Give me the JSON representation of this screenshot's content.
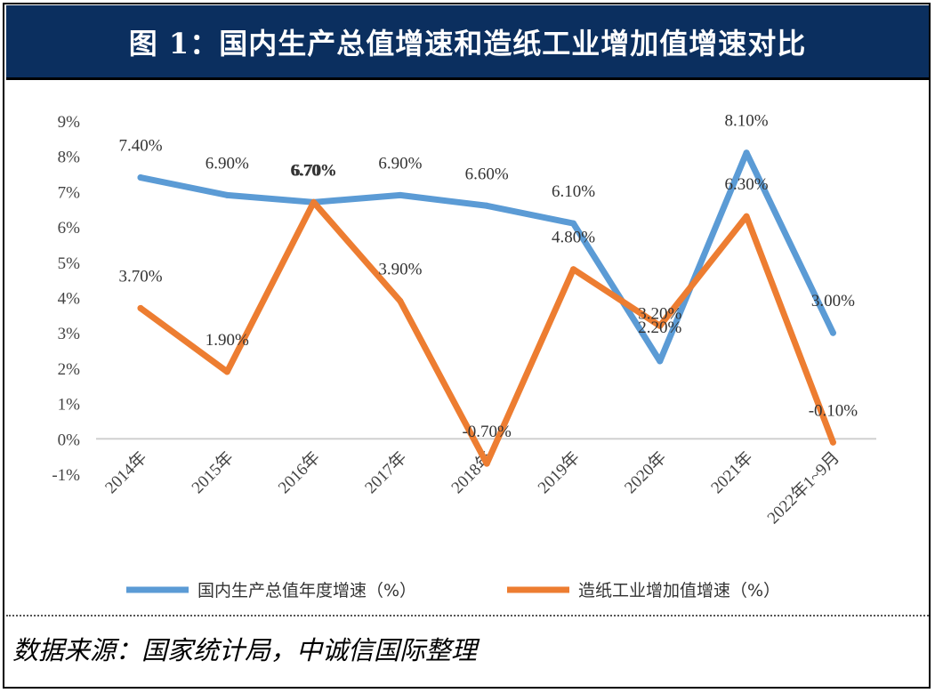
{
  "title": "图 1：国内生产总值增速和造纸工业增加值增速对比",
  "source": "数据来源：国家统计局，中诚信国际整理",
  "chart_data": {
    "type": "line",
    "categories": [
      "2014年",
      "2015年",
      "2016年",
      "2017年",
      "2018年",
      "2019年",
      "2020年",
      "2021年",
      "2022年1~9月"
    ],
    "y_ticks": [
      "9%",
      "8%",
      "7%",
      "6%",
      "5%",
      "4%",
      "3%",
      "2%",
      "1%",
      "0%",
      "-1%"
    ],
    "ylim": [
      -1,
      9
    ],
    "legend_position": "bottom",
    "grid": false,
    "series": [
      {
        "name": "国内生产总值年度增速（%）",
        "color": "#5b9bd5",
        "values": [
          7.4,
          6.9,
          6.7,
          6.9,
          6.6,
          6.1,
          2.2,
          8.1,
          3.0
        ],
        "labels": [
          "7.40%",
          "6.90%",
          "6.70%",
          "6.90%",
          "6.60%",
          "6.10%",
          "2.20%",
          "8.10%",
          "3.00%"
        ]
      },
      {
        "name": "造纸工业增加值增速（%）",
        "color": "#ed7d31",
        "values": [
          3.7,
          1.9,
          6.7,
          3.9,
          -0.7,
          4.8,
          3.2,
          6.3,
          -0.1
        ],
        "labels": [
          "3.70%",
          "1.90%",
          "6.70%",
          "3.90%",
          "-0.70%",
          "4.80%",
          "3.20%",
          "6.30%",
          "-0.10%"
        ]
      }
    ]
  }
}
